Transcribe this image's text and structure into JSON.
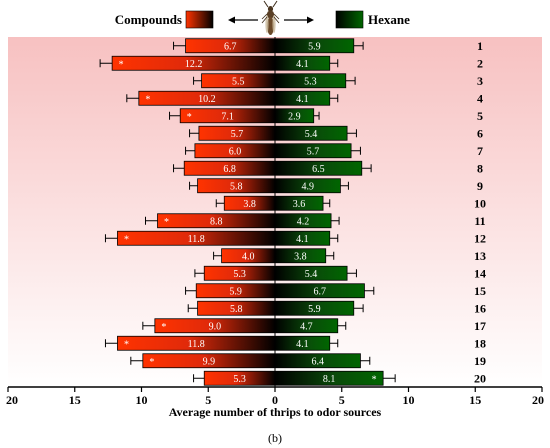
{
  "chart_data": {
    "type": "bar",
    "orientation": "horizontal-diverging",
    "legend": {
      "left_label": "Compounds",
      "right_label": "Hexane",
      "placement": "top-center",
      "icon": "thrips-insect-icon"
    },
    "xlabel": "Average number of thrips to odor sources",
    "caption": "(b)",
    "xlim": [
      -20,
      20
    ],
    "x_ticks": [
      -20,
      -15,
      -10,
      -5,
      0,
      5,
      10,
      15,
      20
    ],
    "x_tick_labels": [
      "20",
      "15",
      "10",
      "5",
      "0",
      "5",
      "10",
      "15",
      "20"
    ],
    "categories": [
      "1",
      "2",
      "3",
      "4",
      "5",
      "6",
      "7",
      "8",
      "9",
      "10",
      "11",
      "12",
      "13",
      "14",
      "15",
      "16",
      "17",
      "18",
      "19",
      "20"
    ],
    "series": [
      {
        "name": "Compounds",
        "side": "left",
        "values": [
          6.7,
          12.2,
          5.5,
          10.2,
          7.1,
          5.7,
          6.0,
          6.8,
          5.8,
          3.8,
          8.8,
          11.8,
          4.0,
          5.3,
          5.9,
          5.8,
          9.0,
          11.8,
          9.9,
          5.3
        ],
        "value_labels": [
          "6.7",
          "12.2",
          "5.5",
          "10.2",
          "7.1",
          "5.7",
          "6.0",
          "6.8",
          "5.8",
          "3.8",
          "8.8",
          "11.8",
          "4.0",
          "5.3",
          "5.9",
          "5.8",
          "9.0",
          "11.8",
          "9.9",
          "5.3"
        ],
        "errors": [
          0.9,
          0.9,
          0.6,
          0.9,
          0.8,
          0.7,
          0.7,
          0.8,
          0.6,
          0.6,
          0.9,
          0.9,
          0.6,
          0.7,
          0.8,
          0.7,
          0.9,
          0.9,
          0.9,
          0.8
        ],
        "significant": [
          false,
          true,
          false,
          true,
          true,
          false,
          false,
          false,
          false,
          false,
          true,
          true,
          false,
          false,
          false,
          false,
          true,
          true,
          true,
          false
        ],
        "color_outer": "#ff3300",
        "color_inner": "#000000"
      },
      {
        "name": "Hexane",
        "side": "right",
        "values": [
          5.9,
          4.1,
          5.3,
          4.1,
          2.9,
          5.4,
          5.7,
          6.5,
          4.9,
          3.6,
          4.2,
          4.1,
          3.8,
          5.4,
          6.7,
          5.9,
          4.7,
          4.1,
          6.4,
          8.1
        ],
        "value_labels": [
          "5.9",
          "4.1",
          "5.3",
          "4.1",
          "2.9",
          "5.4",
          "5.7",
          "6.5",
          "4.9",
          "3.6",
          "4.2",
          "4.1",
          "3.8",
          "5.4",
          "6.7",
          "5.9",
          "4.7",
          "4.1",
          "6.4",
          "8.1"
        ],
        "errors": [
          0.7,
          0.6,
          0.7,
          0.6,
          0.4,
          0.7,
          0.7,
          0.7,
          0.6,
          0.5,
          0.6,
          0.6,
          0.6,
          0.7,
          0.7,
          0.7,
          0.6,
          0.6,
          0.7,
          0.9
        ],
        "significant": [
          false,
          false,
          false,
          false,
          false,
          false,
          false,
          false,
          false,
          false,
          false,
          false,
          false,
          false,
          false,
          false,
          false,
          false,
          false,
          true
        ],
        "color_outer": "#006600",
        "color_inner": "#000000"
      }
    ],
    "significance_mark": "*",
    "background": {
      "top": "#f7c1c1",
      "bottom": "#ffffff"
    },
    "grid": false
  }
}
